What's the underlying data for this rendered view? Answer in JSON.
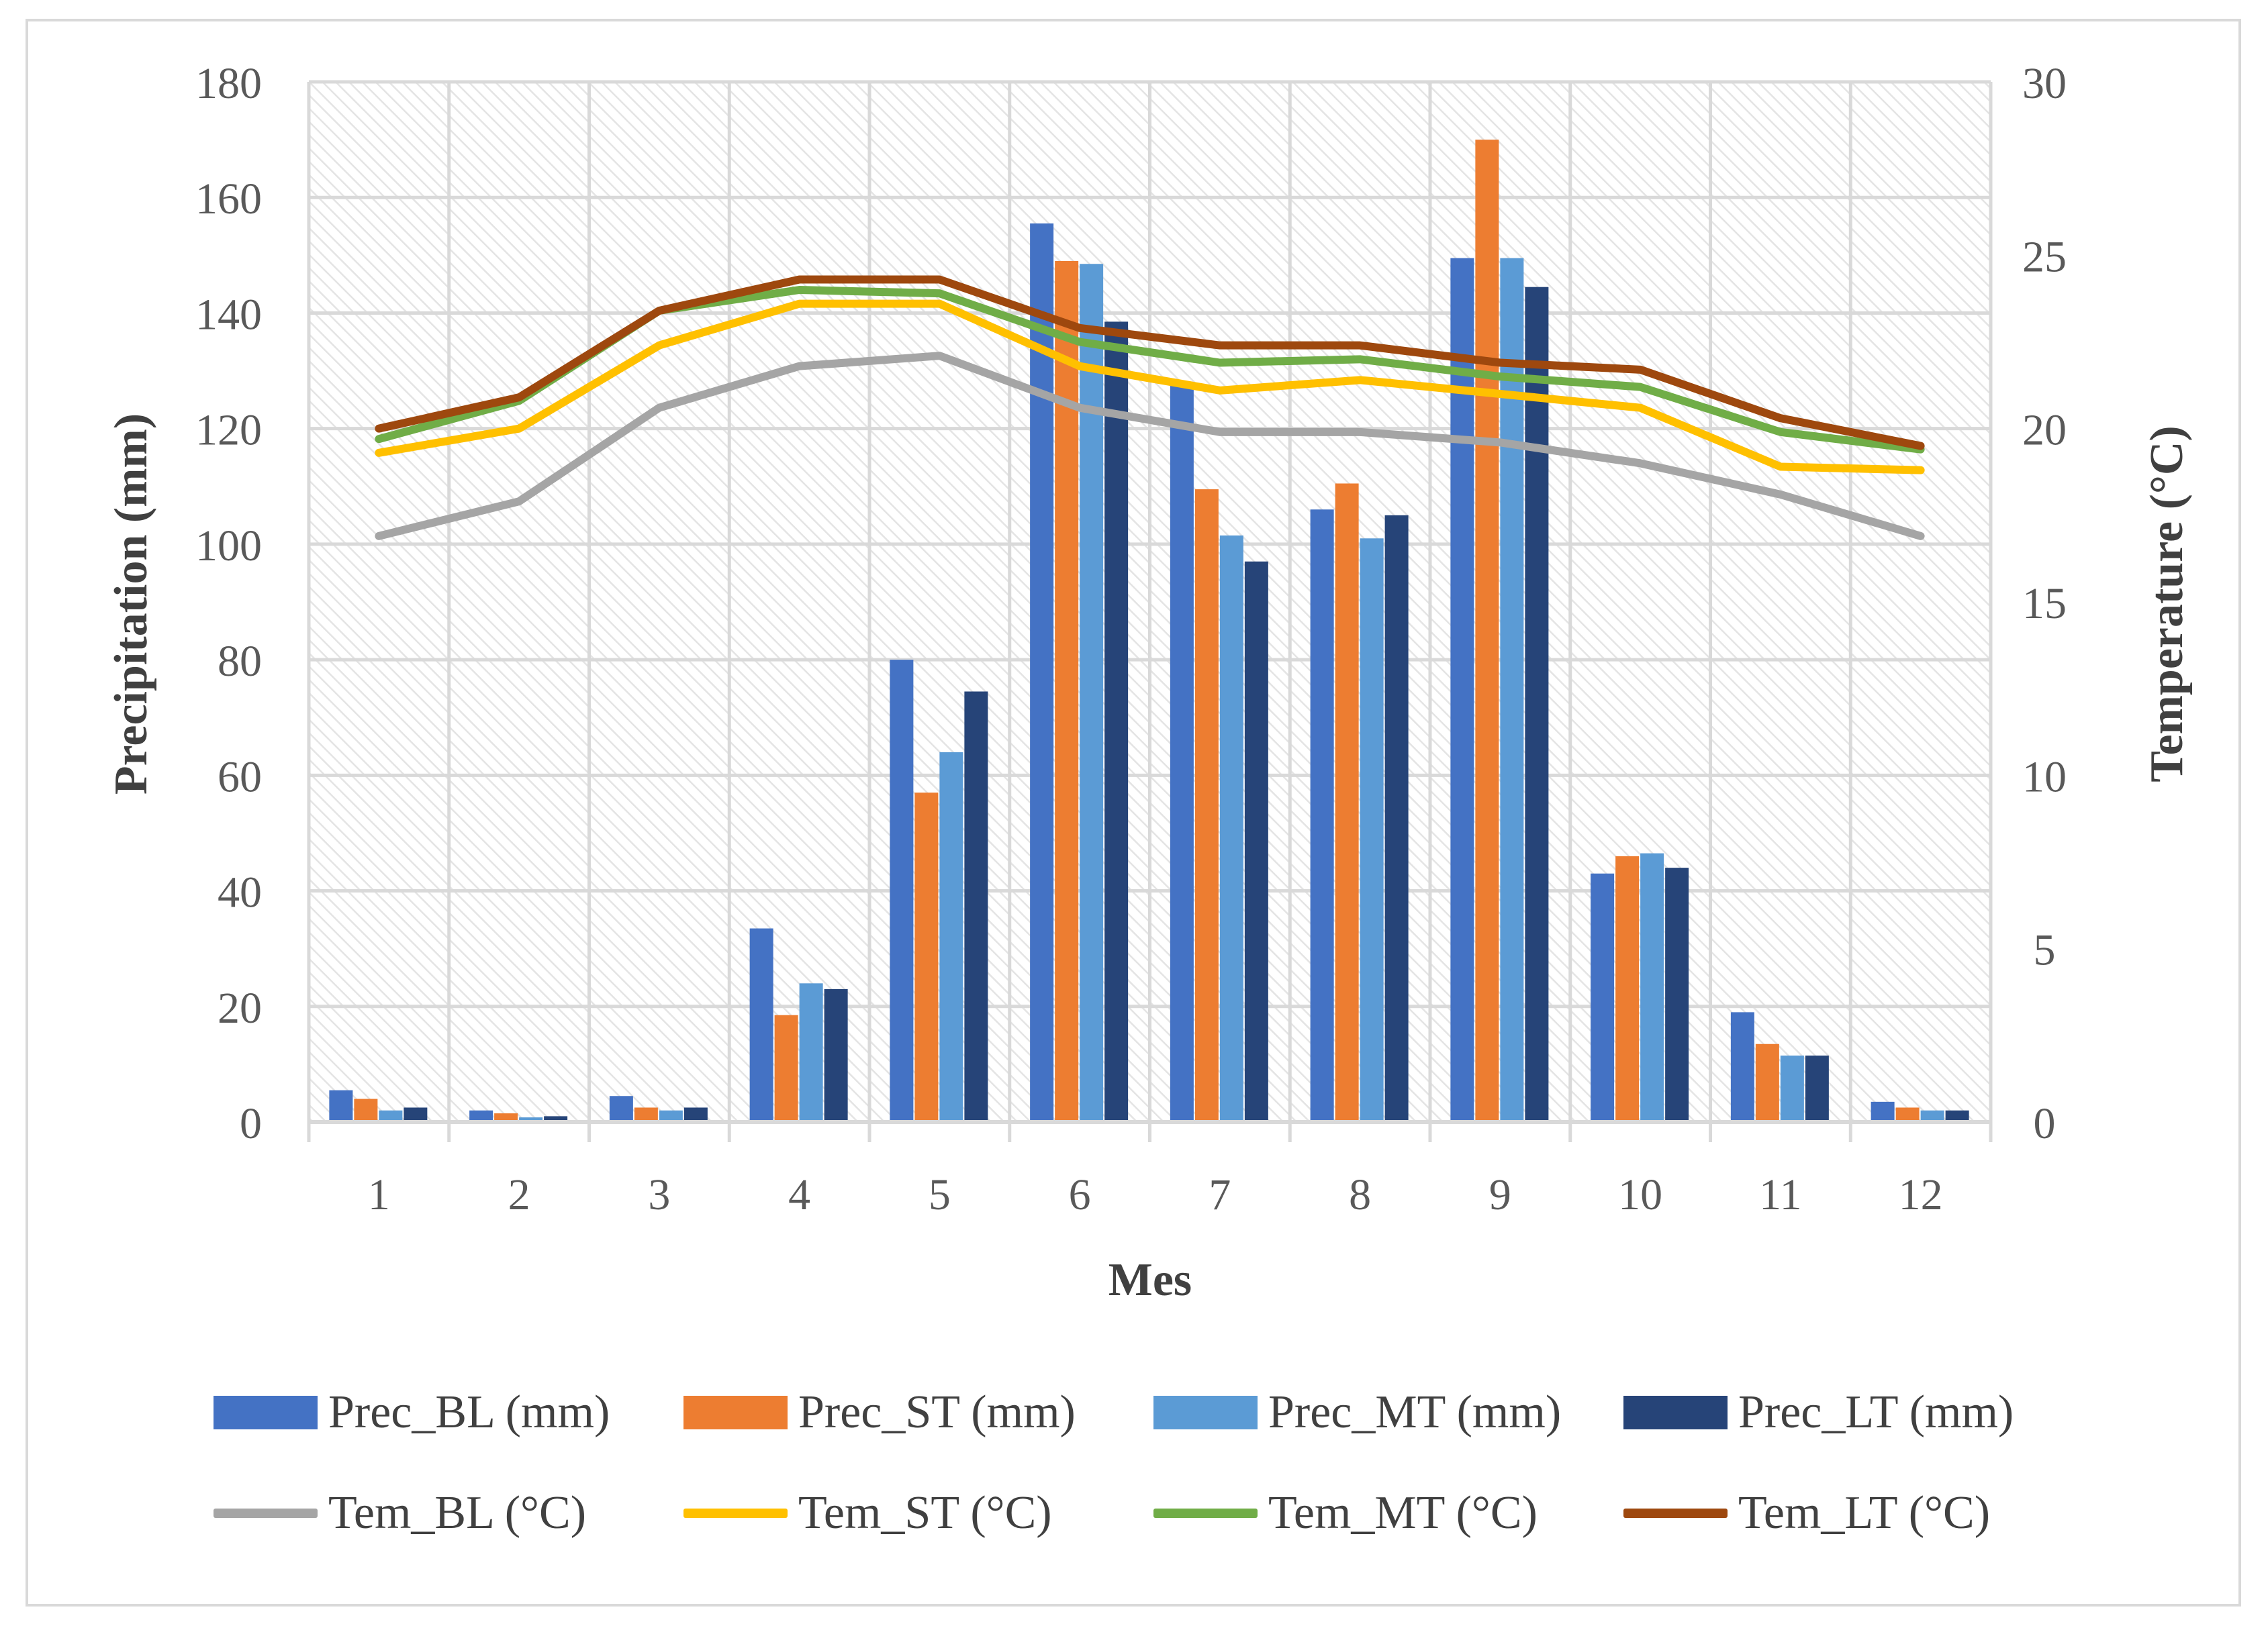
{
  "chart_data": {
    "type": "bar+line",
    "title": "",
    "xlabel": "Mes",
    "ylabel": "Precipitation (mm)",
    "y2label": "Temperature (°C)",
    "ylim": [
      0,
      180
    ],
    "y2lim": [
      0,
      30
    ],
    "yticks": [
      "0",
      "20",
      "40",
      "60",
      "80",
      "100",
      "120",
      "140",
      "160",
      "180"
    ],
    "y2ticks": [
      "0",
      "5",
      "10",
      "15",
      "20",
      "25",
      "30"
    ],
    "categories": [
      "1",
      "2",
      "3",
      "4",
      "5",
      "6",
      "7",
      "8",
      "9",
      "10",
      "11",
      "12"
    ],
    "bar_series": [
      {
        "name": "Prec_BL (mm)",
        "color": "#4472c4",
        "values": [
          5.5,
          2,
          4.5,
          33.5,
          80,
          155.5,
          128,
          106,
          149.5,
          43,
          19,
          3.5
        ]
      },
      {
        "name": "Prec_ST (mm)",
        "color": "#ed7d31",
        "values": [
          4,
          1.5,
          2.5,
          18.5,
          57,
          149,
          109.5,
          110.5,
          170,
          46,
          13.5,
          2.5
        ]
      },
      {
        "name": "Prec_MT (mm)",
        "color": "#5b9bd5",
        "values": [
          2,
          0.8,
          2,
          24,
          64,
          148.5,
          101.5,
          101,
          149.5,
          46.5,
          11.5,
          2
        ]
      },
      {
        "name": "Prec_LT (mm)",
        "color": "#264478",
        "values": [
          2.5,
          1,
          2.5,
          23,
          74.5,
          138.5,
          97,
          105,
          144.5,
          44,
          11.5,
          2
        ]
      }
    ],
    "line_series": [
      {
        "name": "Tem_BL (°C)",
        "color": "#a5a5a5",
        "values": [
          16.9,
          17.9,
          20.6,
          21.8,
          22.1,
          20.6,
          19.9,
          19.9,
          19.6,
          19.0,
          18.1,
          16.9
        ]
      },
      {
        "name": "Tem_ST (°C)",
        "color": "#ffc000",
        "values": [
          19.3,
          20.0,
          22.4,
          23.6,
          23.6,
          21.8,
          21.1,
          21.4,
          21.0,
          20.6,
          18.9,
          18.8
        ]
      },
      {
        "name": "Tem_MT (°C)",
        "color": "#70ad47",
        "values": [
          19.7,
          20.8,
          23.4,
          24.0,
          23.9,
          22.5,
          21.9,
          22.0,
          21.5,
          21.2,
          19.9,
          19.4
        ]
      },
      {
        "name": "Tem_LT (°C)",
        "color": "#9e480e",
        "values": [
          20.0,
          20.9,
          23.4,
          24.3,
          24.3,
          22.9,
          22.4,
          22.4,
          21.9,
          21.7,
          20.3,
          19.5
        ]
      }
    ],
    "grid": true,
    "legend_position": "bottom"
  }
}
